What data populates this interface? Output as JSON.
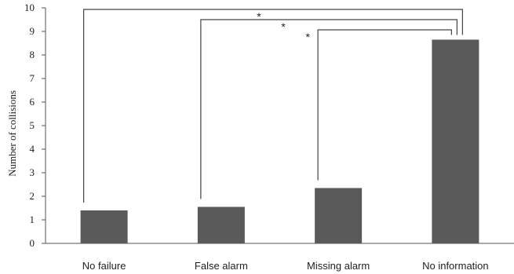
{
  "chart_data": {
    "type": "bar",
    "categories": [
      "No failure",
      "False alarm",
      "Missing alarm",
      "No information"
    ],
    "values": [
      1.4,
      1.55,
      2.35,
      8.65
    ],
    "ylabel": "Number of collisions",
    "ylim": [
      0,
      10
    ],
    "yticks": [
      "0",
      "1",
      "2",
      "3",
      "4",
      "5",
      "6",
      "7",
      "8",
      "9",
      "10"
    ],
    "bar_color": "#5a5a5a",
    "grid": false,
    "significance": [
      {
        "from": "No failure",
        "to": "No information",
        "label": "*"
      },
      {
        "from": "False alarm",
        "to": "No information",
        "label": "*"
      },
      {
        "from": "Missing alarm",
        "to": "No information",
        "label": "*"
      }
    ]
  }
}
